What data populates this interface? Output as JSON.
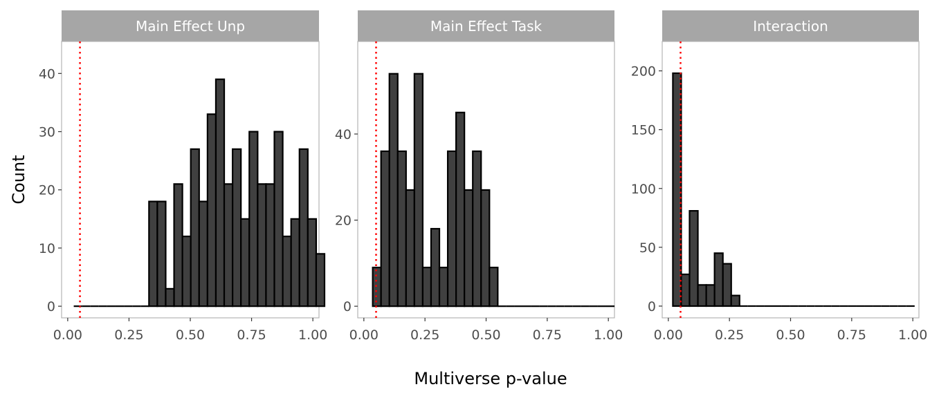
{
  "chart_data": {
    "type": "bar",
    "subtype": "histogram",
    "xlabel": "Multiverse p-value",
    "ylabel": "Count",
    "reference_line": {
      "x": 0.05,
      "color": "#ff0000",
      "style": "dotted"
    },
    "bar_fill": "#404040",
    "bar_stroke": "#000000",
    "strip_fill": "#a6a6a6",
    "grid": false,
    "bin_width": 0.0341,
    "x_ticks": [
      "0.00",
      "0.25",
      "0.50",
      "0.75",
      "1.00"
    ],
    "x_tick_values": [
      0,
      0.25,
      0.5,
      0.75,
      1
    ],
    "panels": [
      {
        "title": "Main Effect Unp",
        "xlim": [
          -0.025,
          1.025
        ],
        "ylim": [
          -2,
          45.5
        ],
        "y_ticks": [
          0,
          10,
          20,
          30,
          40
        ],
        "x_start": 0.0246,
        "counts": [
          0,
          0,
          0,
          0,
          0,
          0,
          0,
          0,
          0,
          18,
          18,
          3,
          21,
          12,
          27,
          18,
          33,
          39,
          21,
          27,
          15,
          30,
          21,
          21,
          30,
          12,
          15,
          27,
          15,
          9
        ]
      },
      {
        "title": "Main Effect Task",
        "xlim": [
          -0.025,
          1.025
        ],
        "ylim": [
          -2.7,
          61.5
        ],
        "y_ticks": [
          0,
          20,
          40
        ],
        "x_start": 0.0362,
        "counts": [
          9,
          36,
          54,
          36,
          27,
          54,
          9,
          18,
          9,
          36,
          45,
          27,
          36,
          27,
          9,
          0,
          0,
          0,
          0,
          0,
          0,
          0,
          0,
          0,
          0,
          0,
          0,
          0,
          0
        ]
      },
      {
        "title": "Interaction",
        "xlim": [
          -0.025,
          1.025
        ],
        "ylim": [
          -10,
          225
        ],
        "y_ticks": [
          0,
          50,
          100,
          150,
          200
        ],
        "x_start": 0.0186,
        "counts": [
          198,
          27,
          81,
          18,
          18,
          45,
          36,
          9,
          0,
          0,
          0,
          0,
          0,
          0,
          0,
          0,
          0,
          0,
          0,
          0,
          0,
          0,
          0,
          0,
          0,
          0,
          0,
          0,
          0
        ]
      }
    ]
  }
}
